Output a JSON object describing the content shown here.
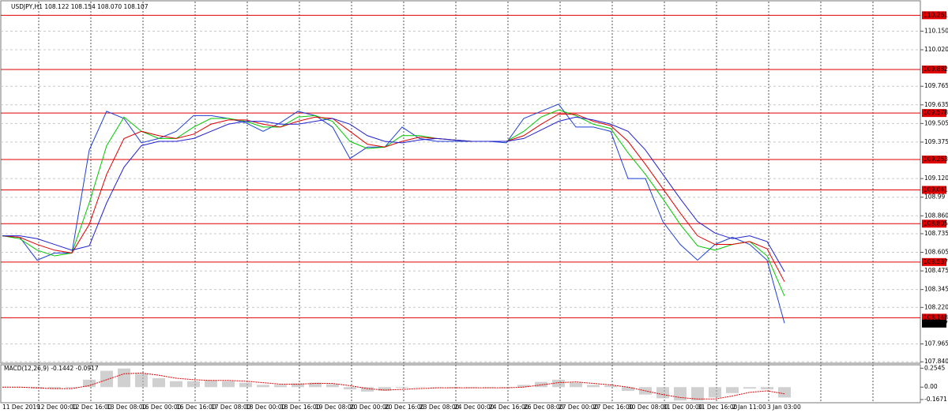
{
  "chart_data": [
    {
      "type": "line",
      "title": "USDJPY,H1  108.122 108.154 108.070 108.107",
      "categories": [
        "11 Dec 2019",
        null,
        "12 Dec 00:00",
        null,
        "12 Dec 16:00",
        null,
        "13 Dec 08:00",
        null,
        "16 Dec 00:00",
        null,
        "16 Dec 16:00",
        null,
        "17 Dec 08:00",
        null,
        "18 Dec 00:00",
        null,
        "18 Dec 16:00",
        null,
        "19 Dec 08:00",
        null,
        "20 Dec 00:00",
        null,
        "20 Dec 16:00",
        null,
        "23 Dec 08:00",
        null,
        "24 Dec 00:00",
        null,
        "24 Dec 16:00",
        null,
        "26 Dec 08:00",
        null,
        "27 Dec 00:00",
        null,
        "27 Dec 16:00",
        null,
        "30 Dec 08:00",
        null,
        "31 Dec 00:00",
        null,
        "31 Dec 16:00",
        null,
        "2 Jan 11:00",
        null,
        "3 Jan 03:00",
        null
      ],
      "series": [
        {
          "color": "#1f3fd6",
          "values": [
            108.72,
            108.71,
            108.55,
            108.6,
            108.6,
            109.32,
            109.59,
            109.54,
            109.37,
            109.4,
            109.45,
            109.56,
            109.56,
            109.54,
            109.51,
            109.45,
            109.51,
            109.59,
            109.56,
            109.48,
            109.26,
            109.34,
            109.34,
            109.48,
            109.4,
            109.38,
            109.38,
            109.38,
            109.38,
            109.37,
            109.54,
            109.59,
            109.64,
            109.48,
            109.48,
            109.45,
            109.12,
            109.12,
            108.82,
            108.66,
            108.55,
            108.66,
            108.71,
            108.66,
            108.55,
            108.11
          ]
        },
        {
          "color": "#00c800",
          "values": [
            108.72,
            108.7,
            108.62,
            108.58,
            108.6,
            108.95,
            109.35,
            109.55,
            109.45,
            109.4,
            109.4,
            109.48,
            109.54,
            109.54,
            109.52,
            109.48,
            109.48,
            109.55,
            109.56,
            109.52,
            109.38,
            109.33,
            109.34,
            109.42,
            109.42,
            109.4,
            109.39,
            109.38,
            109.38,
            109.38,
            109.45,
            109.55,
            109.6,
            109.56,
            109.5,
            109.47,
            109.3,
            109.15,
            108.98,
            108.8,
            108.65,
            108.62,
            108.66,
            108.68,
            108.58,
            108.3
          ]
        },
        {
          "color": "#e00000",
          "values": [
            108.72,
            108.71,
            108.66,
            108.62,
            108.6,
            108.8,
            109.15,
            109.4,
            109.45,
            109.42,
            109.4,
            109.43,
            109.5,
            109.53,
            109.53,
            109.5,
            109.48,
            109.52,
            109.55,
            109.54,
            109.45,
            109.36,
            109.34,
            109.38,
            109.41,
            109.4,
            109.39,
            109.38,
            109.38,
            109.38,
            109.42,
            109.5,
            109.57,
            109.57,
            109.52,
            109.49,
            109.38,
            109.22,
            109.05,
            108.88,
            108.72,
            108.66,
            108.66,
            108.68,
            108.63,
            108.4
          ]
        },
        {
          "color": "#2020d0",
          "values": [
            108.72,
            108.72,
            108.7,
            108.66,
            108.62,
            108.65,
            108.95,
            109.2,
            109.35,
            109.38,
            109.38,
            109.4,
            109.45,
            109.5,
            109.52,
            109.52,
            109.5,
            109.5,
            109.52,
            109.54,
            109.5,
            109.42,
            109.38,
            109.37,
            109.39,
            109.4,
            109.39,
            109.38,
            109.38,
            109.38,
            109.4,
            109.46,
            109.52,
            109.55,
            109.53,
            109.5,
            109.45,
            109.32,
            109.15,
            108.98,
            108.82,
            108.74,
            108.7,
            108.72,
            108.68,
            108.47
          ]
        }
      ],
      "levels": [
        110.261,
        109.882,
        109.578,
        109.253,
        109.041,
        108.805,
        108.537,
        108.148
      ],
      "level_color": "#e00000",
      "current": 108.107,
      "ylim": [
        107.83,
        110.34
      ],
      "yticks": [
        {
          "value": 110.15,
          "label": "110.150"
        },
        {
          "value": 110.02,
          "label": "110.020"
        },
        109.765,
        109.635,
        109.505,
        109.375,
        {
          "value": 109.12,
          "label": "109.120"
        },
        108.99,
        {
          "value": 108.86,
          "label": "108.860"
        },
        108.735,
        108.605,
        108.475,
        108.345,
        {
          "value": 108.22,
          "label": "108.220"
        },
        107.965,
        {
          "value": 107.84,
          "label": "107.840"
        }
      ],
      "grid": true
    },
    {
      "type": "macd",
      "title": "MACD(12,26,9) -0.1442 -0.0917",
      "series": [
        {
          "type": "bar",
          "color": "#b0b0b0",
          "values": [
            0,
            0,
            -0.02,
            -0.02,
            -0.01,
            0.1,
            0.22,
            0.25,
            0.18,
            0.12,
            0.08,
            0.08,
            0.09,
            0.08,
            0.06,
            0.03,
            0.03,
            0.05,
            0.06,
            0.04,
            -0.03,
            -0.06,
            -0.05,
            -0.01,
            0,
            0,
            -0.01,
            -0.01,
            -0.01,
            -0.01,
            0.03,
            0.07,
            0.1,
            0.06,
            0.03,
            0.02,
            -0.05,
            -0.1,
            -0.15,
            -0.18,
            -0.18,
            -0.14,
            -0.08,
            -0.02,
            -0.03,
            -0.14
          ]
        },
        {
          "type": "line",
          "color": "#e00000",
          "values": [
            0,
            0,
            -0.01,
            -0.02,
            -0.02,
            0.02,
            0.1,
            0.18,
            0.19,
            0.16,
            0.12,
            0.1,
            0.09,
            0.09,
            0.08,
            0.06,
            0.04,
            0.04,
            0.05,
            0.05,
            0.02,
            -0.02,
            -0.04,
            -0.03,
            -0.02,
            -0.01,
            -0.01,
            -0.01,
            -0.01,
            -0.01,
            0,
            0.03,
            0.06,
            0.07,
            0.05,
            0.03,
            0,
            -0.05,
            -0.1,
            -0.14,
            -0.16,
            -0.16,
            -0.12,
            -0.07,
            -0.05,
            -0.09
          ]
        }
      ],
      "ylim": [
        -0.21,
        0.3
      ],
      "yticks": [
        0.2545,
        {
          "value": 0,
          "label": "0.00"
        },
        -0.1671
      ]
    }
  ]
}
